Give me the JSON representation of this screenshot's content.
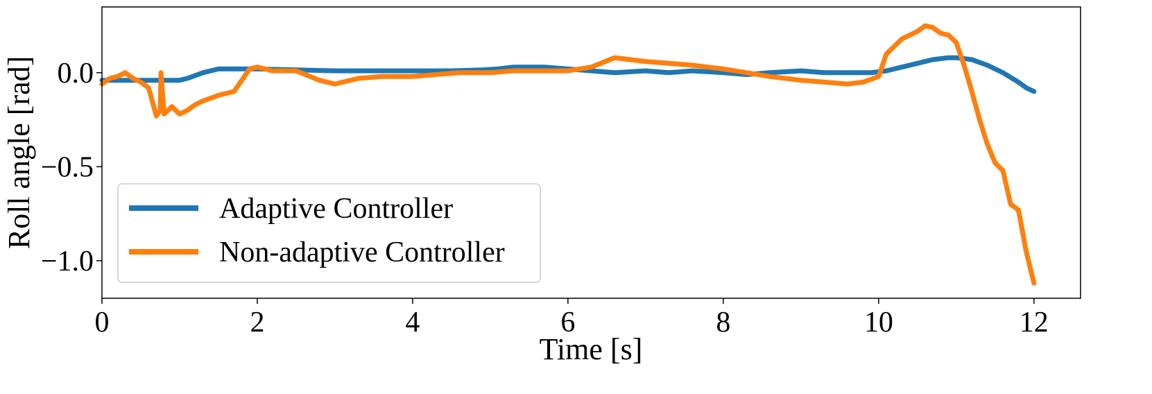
{
  "chart_data": {
    "type": "line",
    "xlabel": "Time [s]",
    "ylabel": "Roll angle [rad]",
    "xlim": [
      0,
      12.6
    ],
    "ylim": [
      -1.2,
      0.35
    ],
    "xticks": [
      0,
      2,
      4,
      6,
      8,
      10,
      12
    ],
    "xtick_labels": [
      "0",
      "2",
      "4",
      "6",
      "8",
      "10",
      "12"
    ],
    "yticks": [
      0.0,
      -0.5,
      -1.0
    ],
    "ytick_labels": [
      "0.0",
      "−0.5",
      "−1.0"
    ],
    "grid": false,
    "legend_position": "lower-left",
    "series": [
      {
        "name": "Adaptive Controller",
        "color": "#1f77b4",
        "x": [
          0,
          0.5,
          1.0,
          1.1,
          1.3,
          1.5,
          1.7,
          2.0,
          2.5,
          3.0,
          3.5,
          4.0,
          4.5,
          4.9,
          5.1,
          5.3,
          5.5,
          5.7,
          6.0,
          6.3,
          6.6,
          7.0,
          7.3,
          7.6,
          8.0,
          8.3,
          8.6,
          9.0,
          9.3,
          9.6,
          9.9,
          10.1,
          10.3,
          10.5,
          10.7,
          10.9,
          11.0,
          11.2,
          11.4,
          11.6,
          11.8,
          11.9,
          12.0
        ],
        "y": [
          -0.04,
          -0.04,
          -0.04,
          -0.03,
          0.0,
          0.02,
          0.02,
          0.02,
          0.015,
          0.01,
          0.01,
          0.01,
          0.01,
          0.015,
          0.02,
          0.03,
          0.03,
          0.03,
          0.02,
          0.01,
          0.0,
          0.01,
          0.0,
          0.01,
          0.0,
          -0.01,
          0.0,
          0.01,
          0.0,
          0.0,
          0.0,
          0.01,
          0.03,
          0.05,
          0.07,
          0.08,
          0.08,
          0.07,
          0.04,
          0.0,
          -0.05,
          -0.08,
          -0.1
        ]
      },
      {
        "name": "Non-adaptive Controller",
        "color": "#ff7f0e",
        "x": [
          0,
          0.1,
          0.2,
          0.3,
          0.4,
          0.5,
          0.6,
          0.7,
          0.75,
          0.76,
          0.8,
          0.9,
          1.0,
          1.1,
          1.2,
          1.3,
          1.5,
          1.7,
          1.8,
          1.9,
          2.0,
          2.2,
          2.5,
          2.8,
          3.0,
          3.3,
          3.6,
          4.0,
          4.3,
          4.6,
          5.0,
          5.3,
          5.6,
          6.0,
          6.3,
          6.6,
          6.8,
          7.0,
          7.3,
          7.6,
          8.0,
          8.3,
          8.6,
          9.0,
          9.3,
          9.6,
          9.8,
          10.0,
          10.1,
          10.2,
          10.3,
          10.5,
          10.6,
          10.7,
          10.8,
          10.9,
          11.0,
          11.1,
          11.2,
          11.3,
          11.4,
          11.5,
          11.6,
          11.7,
          11.8,
          11.9,
          12.0
        ],
        "y": [
          -0.06,
          -0.03,
          -0.02,
          0.0,
          -0.03,
          -0.05,
          -0.08,
          -0.23,
          -0.2,
          0.0,
          -0.22,
          -0.18,
          -0.22,
          -0.2,
          -0.17,
          -0.15,
          -0.12,
          -0.1,
          -0.04,
          0.02,
          0.03,
          0.01,
          0.01,
          -0.04,
          -0.06,
          -0.03,
          -0.02,
          -0.02,
          -0.01,
          0.0,
          0.0,
          0.01,
          0.01,
          0.01,
          0.03,
          0.08,
          0.07,
          0.06,
          0.05,
          0.04,
          0.02,
          0.0,
          -0.02,
          -0.04,
          -0.05,
          -0.06,
          -0.05,
          -0.02,
          0.1,
          0.14,
          0.18,
          0.22,
          0.25,
          0.24,
          0.21,
          0.2,
          0.16,
          0.04,
          -0.1,
          -0.25,
          -0.38,
          -0.48,
          -0.52,
          -0.7,
          -0.73,
          -0.95,
          -1.12
        ]
      }
    ]
  }
}
